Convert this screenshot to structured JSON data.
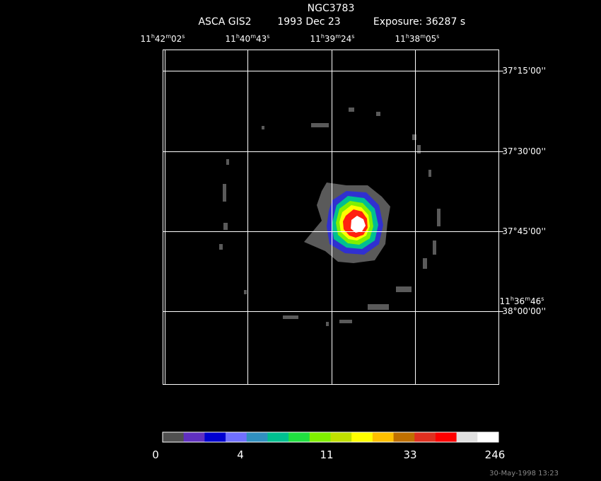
{
  "header": {
    "object": "NGC3783",
    "instrument": "ASCA GIS2",
    "date": "1993 Dec 23",
    "exposure": "Exposure: 36287 s"
  },
  "ra_labels": [
    [
      "11",
      "h",
      "42",
      "m",
      "02",
      "s"
    ],
    [
      "11",
      "h",
      "40",
      "m",
      "43",
      "s"
    ],
    [
      "11",
      "h",
      "39",
      "m",
      "24",
      "s"
    ],
    [
      "11",
      "h",
      "38",
      "m",
      "05",
      "s"
    ],
    [
      "11",
      "h",
      "36",
      "m",
      "46",
      "s"
    ]
  ],
  "dec_labels": [
    "-37°15'00''",
    "-37°30'00''",
    "-37°45'00''",
    "-38°00'00''"
  ],
  "colorbar": {
    "colors": [
      "#505050",
      "#6030c0",
      "#0000d0",
      "#7070ff",
      "#3090c0",
      "#00c090",
      "#20e040",
      "#80f000",
      "#c0e000",
      "#ffff00",
      "#ffc000",
      "#c07000",
      "#e03020",
      "#ff0000",
      "#e0e0e0",
      "#ffffff"
    ],
    "labels": [
      "0",
      "4",
      "11",
      "33",
      "246"
    ]
  },
  "footer": "30-May-1998 13:23"
}
